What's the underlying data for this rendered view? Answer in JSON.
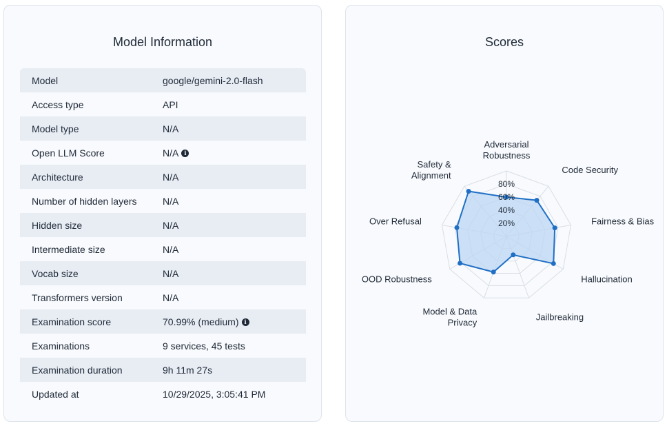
{
  "model_info": {
    "title": "Model Information",
    "rows": [
      {
        "key": "Model",
        "value": "google/gemini-2.0-flash",
        "info": false
      },
      {
        "key": "Access type",
        "value": "API",
        "info": false
      },
      {
        "key": "Model type",
        "value": "N/A",
        "info": false
      },
      {
        "key": "Open LLM Score",
        "value": "N/A",
        "info": true
      },
      {
        "key": "Architecture",
        "value": "N/A",
        "info": false
      },
      {
        "key": "Number of hidden layers",
        "value": "N/A",
        "info": false
      },
      {
        "key": "Hidden size",
        "value": "N/A",
        "info": false
      },
      {
        "key": "Intermediate size",
        "value": "N/A",
        "info": false
      },
      {
        "key": "Vocab size",
        "value": "N/A",
        "info": false
      },
      {
        "key": "Transformers version",
        "value": "N/A",
        "info": false
      },
      {
        "key": "Examination score",
        "value": "70.99% (medium)",
        "info": true
      },
      {
        "key": "Examinations",
        "value": "9 services, 45 tests",
        "info": false
      },
      {
        "key": "Examination duration",
        "value": "9h 11m 27s",
        "info": false
      },
      {
        "key": "Updated at",
        "value": "10/29/2025, 3:05:41 PM",
        "info": false
      }
    ],
    "info_icon": "info-circle-icon"
  },
  "scores": {
    "title": "Scores"
  },
  "chart_data": {
    "type": "radar",
    "categories": [
      [
        "Adversarial",
        "Robustness"
      ],
      [
        "Code Security"
      ],
      [
        "Fairness & Bias"
      ],
      [
        "Hallucination"
      ],
      [
        "Jailbreaking"
      ],
      [
        "Model & Data",
        "Privacy"
      ],
      [
        "OOD Robustness"
      ],
      [
        "Over Refusal"
      ],
      [
        "Safety &",
        "Alignment"
      ]
    ],
    "values": [
      60,
      72,
      75,
      83,
      30,
      58,
      82,
      77,
      90
    ],
    "range": [
      0,
      100
    ],
    "ticks": [
      "20%",
      "40%",
      "60%",
      "80%"
    ],
    "colors": {
      "line": "#1f6fc5",
      "fill": "#bcd7f3",
      "grid": "#d9dee5"
    }
  }
}
